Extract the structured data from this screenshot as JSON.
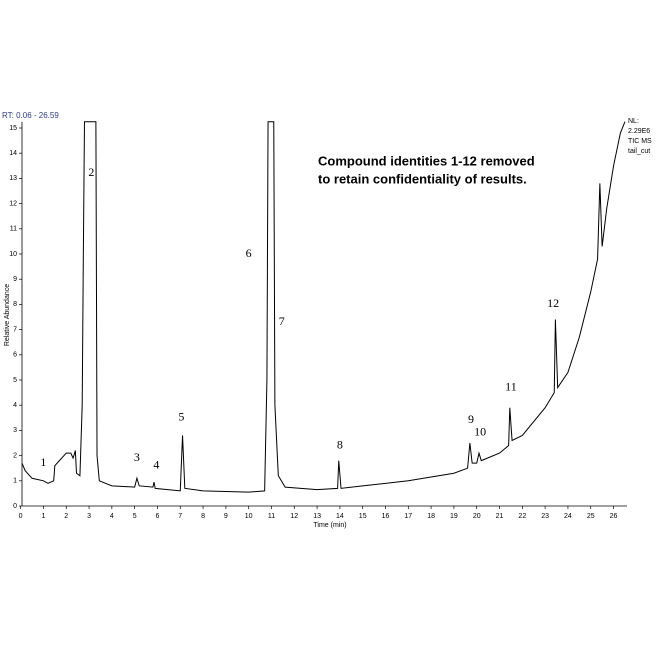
{
  "chart_data": {
    "type": "line",
    "header": "RT: 0.06 - 26.59",
    "info": [
      "NL:",
      "2.29E6",
      "TIC  MS",
      "tail_cut"
    ],
    "note": [
      "Compound identities 1-12 removed",
      "to retain confidentiality of results."
    ],
    "x_label": "Time (min)",
    "y_label": "Relative Abundance",
    "xlim": [
      0.06,
      26.59
    ],
    "ylim": [
      0,
      15.25
    ],
    "xticks": [
      0,
      1,
      2,
      3,
      4,
      5,
      6,
      7,
      8,
      9,
      10,
      11,
      12,
      13,
      14,
      15,
      16,
      17,
      18,
      19,
      20,
      21,
      22,
      23,
      24,
      25,
      26
    ],
    "yticks": [
      0,
      1,
      2,
      3,
      4,
      5,
      6,
      7,
      8,
      9,
      10,
      11,
      12,
      13,
      14,
      15
    ],
    "color": "#000000",
    "x": [
      0.06,
      0.2,
      0.5,
      1.0,
      1.2,
      1.45,
      1.5,
      1.7,
      2.0,
      2.2,
      2.3,
      2.4,
      2.45,
      2.6,
      2.7,
      2.75,
      2.8,
      3.3,
      3.35,
      3.45,
      4.0,
      5.0,
      5.1,
      5.2,
      5.8,
      5.85,
      5.9,
      7.0,
      7.1,
      7.2,
      8.0,
      10.0,
      10.7,
      10.8,
      10.85,
      11.1,
      11.15,
      11.3,
      11.6,
      13.0,
      13.9,
      13.95,
      14.05,
      15.0,
      17.0,
      19.0,
      19.6,
      19.7,
      19.8,
      20.0,
      20.1,
      20.2,
      21.0,
      21.4,
      21.45,
      21.55,
      22.0,
      23.0,
      23.4,
      23.45,
      23.55,
      24.0,
      24.5,
      25.0,
      25.3,
      25.4,
      25.5,
      25.7,
      26.0,
      26.3,
      26.5
    ],
    "values": [
      1.7,
      1.4,
      1.1,
      1.0,
      0.9,
      1.0,
      1.6,
      1.8,
      2.1,
      2.1,
      1.9,
      2.2,
      1.3,
      1.2,
      4,
      10,
      15.25,
      15.25,
      2,
      1.0,
      0.8,
      0.75,
      1.1,
      0.8,
      0.75,
      0.95,
      0.7,
      0.6,
      2.8,
      0.7,
      0.6,
      0.55,
      0.6,
      5,
      15.25,
      15.25,
      4,
      1.2,
      0.75,
      0.65,
      0.7,
      1.8,
      0.7,
      0.8,
      1.0,
      1.3,
      1.5,
      2.5,
      1.7,
      1.7,
      2.1,
      1.8,
      2.1,
      2.4,
      3.9,
      2.6,
      2.8,
      3.9,
      4.5,
      7.4,
      4.7,
      5.3,
      6.7,
      8.5,
      9.8,
      12.8,
      10.3,
      11.8,
      13.5,
      14.8,
      15.25
    ],
    "annotations": [
      {
        "text": "1",
        "x": 1.0,
        "y": 1.7
      },
      {
        "text": "2",
        "x": 3.1,
        "y": 13.2
      },
      {
        "text": "3",
        "x": 5.1,
        "y": 1.9
      },
      {
        "text": "4",
        "x": 5.95,
        "y": 1.6
      },
      {
        "text": "5",
        "x": 7.05,
        "y": 3.5
      },
      {
        "text": "6",
        "x": 10.0,
        "y": 10.0
      },
      {
        "text": "7",
        "x": 11.45,
        "y": 7.3
      },
      {
        "text": "8",
        "x": 14.0,
        "y": 2.4
      },
      {
        "text": "9",
        "x": 19.75,
        "y": 3.4
      },
      {
        "text": "10",
        "x": 20.15,
        "y": 2.9
      },
      {
        "text": "11",
        "x": 21.5,
        "y": 4.7
      },
      {
        "text": "12",
        "x": 23.35,
        "y": 8.0
      }
    ]
  }
}
